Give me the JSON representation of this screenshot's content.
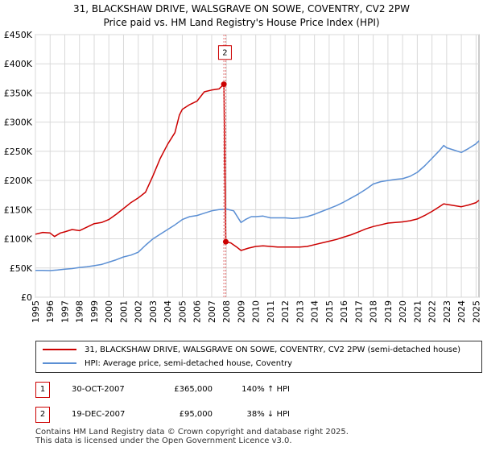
{
  "title_line1": "31, BLACKSHAW DRIVE, WALSGRAVE ON SOWE, COVENTRY, CV2 2PW",
  "title_line2": "Price paid vs. HM Land Registry's House Price Index (HPI)",
  "chart_data": {
    "type": "line",
    "title": "31, BLACKSHAW DRIVE, WALSGRAVE ON SOWE, COVENTRY, CV2 2PW",
    "subtitle": "Price paid vs. HM Land Registry's House Price Index (HPI)",
    "xlim": [
      1995,
      2025.2
    ],
    "ylim": [
      0,
      450000
    ],
    "y_ticks": [
      0,
      50000,
      100000,
      150000,
      200000,
      250000,
      300000,
      350000,
      400000,
      450000
    ],
    "y_tick_labels": [
      "£0",
      "£50K",
      "£100K",
      "£150K",
      "£200K",
      "£250K",
      "£300K",
      "£350K",
      "£400K",
      "£450K"
    ],
    "x_ticks": [
      1995,
      1996,
      1997,
      1998,
      1999,
      2000,
      2001,
      2002,
      2003,
      2004,
      2005,
      2006,
      2007,
      2008,
      2009,
      2010,
      2011,
      2012,
      2013,
      2014,
      2015,
      2016,
      2017,
      2018,
      2019,
      2020,
      2021,
      2022,
      2023,
      2024,
      2025
    ],
    "grid": true,
    "series": [
      {
        "name": "31, BLACKSHAW DRIVE, WALSGRAVE ON SOWE, COVENTRY, CV2 2PW (semi-detached house)",
        "color": "#cc0000",
        "points": [
          [
            1995.0,
            108000
          ],
          [
            1995.5,
            111000
          ],
          [
            1996.0,
            110000
          ],
          [
            1996.3,
            104000
          ],
          [
            1996.7,
            110000
          ],
          [
            1997.0,
            112000
          ],
          [
            1997.5,
            116000
          ],
          [
            1998.0,
            114000
          ],
          [
            1998.5,
            120000
          ],
          [
            1999.0,
            126000
          ],
          [
            1999.5,
            128000
          ],
          [
            2000.0,
            133000
          ],
          [
            2000.5,
            142000
          ],
          [
            2001.0,
            152000
          ],
          [
            2001.5,
            162000
          ],
          [
            2002.0,
            170000
          ],
          [
            2002.5,
            180000
          ],
          [
            2003.0,
            208000
          ],
          [
            2003.5,
            238000
          ],
          [
            2004.0,
            262000
          ],
          [
            2004.5,
            282000
          ],
          [
            2004.8,
            312000
          ],
          [
            2005.0,
            322000
          ],
          [
            2005.5,
            330000
          ],
          [
            2006.0,
            336000
          ],
          [
            2006.5,
            352000
          ],
          [
            2007.0,
            355000
          ],
          [
            2007.5,
            357000
          ],
          [
            2007.83,
            365000
          ],
          [
            2007.96,
            95000
          ],
          [
            2008.3,
            93000
          ],
          [
            2008.7,
            86000
          ],
          [
            2009.0,
            80000
          ],
          [
            2009.5,
            84000
          ],
          [
            2010.0,
            87000
          ],
          [
            2010.5,
            88000
          ],
          [
            2011.0,
            87000
          ],
          [
            2011.5,
            86000
          ],
          [
            2012.0,
            86000
          ],
          [
            2012.5,
            86000
          ],
          [
            2013.0,
            86000
          ],
          [
            2013.5,
            87000
          ],
          [
            2014.0,
            90000
          ],
          [
            2014.5,
            93000
          ],
          [
            2015.0,
            96000
          ],
          [
            2015.5,
            99000
          ],
          [
            2016.0,
            103000
          ],
          [
            2016.5,
            107000
          ],
          [
            2017.0,
            112000
          ],
          [
            2017.5,
            117000
          ],
          [
            2018.0,
            121000
          ],
          [
            2018.5,
            124000
          ],
          [
            2019.0,
            127000
          ],
          [
            2019.5,
            128000
          ],
          [
            2020.0,
            129000
          ],
          [
            2020.5,
            131000
          ],
          [
            2021.0,
            134000
          ],
          [
            2021.5,
            140000
          ],
          [
            2022.0,
            147000
          ],
          [
            2022.5,
            155000
          ],
          [
            2022.8,
            160000
          ],
          [
            2023.0,
            159000
          ],
          [
            2023.5,
            157000
          ],
          [
            2024.0,
            155000
          ],
          [
            2024.5,
            158000
          ],
          [
            2025.0,
            162000
          ],
          [
            2025.2,
            166000
          ]
        ]
      },
      {
        "name": "HPI: Average price, semi-detached house, Coventry",
        "color": "#5b8fd4",
        "points": [
          [
            1995.0,
            46000
          ],
          [
            1995.5,
            46000
          ],
          [
            1996.0,
            45500
          ],
          [
            1996.5,
            46500
          ],
          [
            1997.0,
            48000
          ],
          [
            1997.5,
            49000
          ],
          [
            1998.0,
            51000
          ],
          [
            1998.5,
            52000
          ],
          [
            1999.0,
            54000
          ],
          [
            1999.5,
            56000
          ],
          [
            2000.0,
            60000
          ],
          [
            2000.5,
            64000
          ],
          [
            2001.0,
            69000
          ],
          [
            2001.5,
            72000
          ],
          [
            2002.0,
            77000
          ],
          [
            2002.5,
            89000
          ],
          [
            2003.0,
            100000
          ],
          [
            2003.5,
            108000
          ],
          [
            2004.0,
            116000
          ],
          [
            2004.5,
            124000
          ],
          [
            2005.0,
            133000
          ],
          [
            2005.5,
            138000
          ],
          [
            2006.0,
            140000
          ],
          [
            2006.5,
            144000
          ],
          [
            2007.0,
            148000
          ],
          [
            2007.5,
            150000
          ],
          [
            2008.0,
            151000
          ],
          [
            2008.5,
            148000
          ],
          [
            2009.0,
            128000
          ],
          [
            2009.3,
            133000
          ],
          [
            2009.7,
            138000
          ],
          [
            2010.0,
            138000
          ],
          [
            2010.5,
            139000
          ],
          [
            2011.0,
            136000
          ],
          [
            2011.5,
            136000
          ],
          [
            2012.0,
            136000
          ],
          [
            2012.5,
            135000
          ],
          [
            2013.0,
            136000
          ],
          [
            2013.5,
            138000
          ],
          [
            2014.0,
            142000
          ],
          [
            2014.5,
            147000
          ],
          [
            2015.0,
            152000
          ],
          [
            2015.5,
            157000
          ],
          [
            2016.0,
            163000
          ],
          [
            2016.5,
            170000
          ],
          [
            2017.0,
            177000
          ],
          [
            2017.5,
            185000
          ],
          [
            2018.0,
            194000
          ],
          [
            2018.5,
            198000
          ],
          [
            2019.0,
            200000
          ],
          [
            2019.5,
            202000
          ],
          [
            2020.0,
            203000
          ],
          [
            2020.5,
            207000
          ],
          [
            2021.0,
            214000
          ],
          [
            2021.5,
            225000
          ],
          [
            2022.0,
            238000
          ],
          [
            2022.5,
            251000
          ],
          [
            2022.8,
            260000
          ],
          [
            2023.0,
            256000
          ],
          [
            2023.5,
            252000
          ],
          [
            2024.0,
            248000
          ],
          [
            2024.5,
            255000
          ],
          [
            2025.0,
            263000
          ],
          [
            2025.2,
            268000
          ]
        ]
      }
    ],
    "annotations": [
      {
        "label": "1",
        "x": 2007.83
      },
      {
        "label": "2",
        "x": 2007.96
      }
    ],
    "sales": [
      {
        "label": "1",
        "x": 2007.83,
        "y": 365000
      },
      {
        "label": "2",
        "x": 2007.96,
        "y": 95000
      }
    ]
  },
  "legend": {
    "items": [
      {
        "label": "31, BLACKSHAW DRIVE, WALSGRAVE ON SOWE, COVENTRY, CV2 2PW (semi-detached house)",
        "color": "#cc0000"
      },
      {
        "label": "HPI: Average price, semi-detached house, Coventry",
        "color": "#5b8fd4"
      }
    ]
  },
  "transactions": [
    {
      "badge": "1",
      "date": "30-OCT-2007",
      "price": "£365,000",
      "hpi": "140% ↑ HPI"
    },
    {
      "badge": "2",
      "date": "19-DEC-2007",
      "price": "£95,000",
      "hpi": "38% ↓ HPI"
    }
  ],
  "footer": {
    "line1": "Contains HM Land Registry data © Crown copyright and database right 2025.",
    "line2": "This data is licensed under the Open Government Licence v3.0."
  }
}
